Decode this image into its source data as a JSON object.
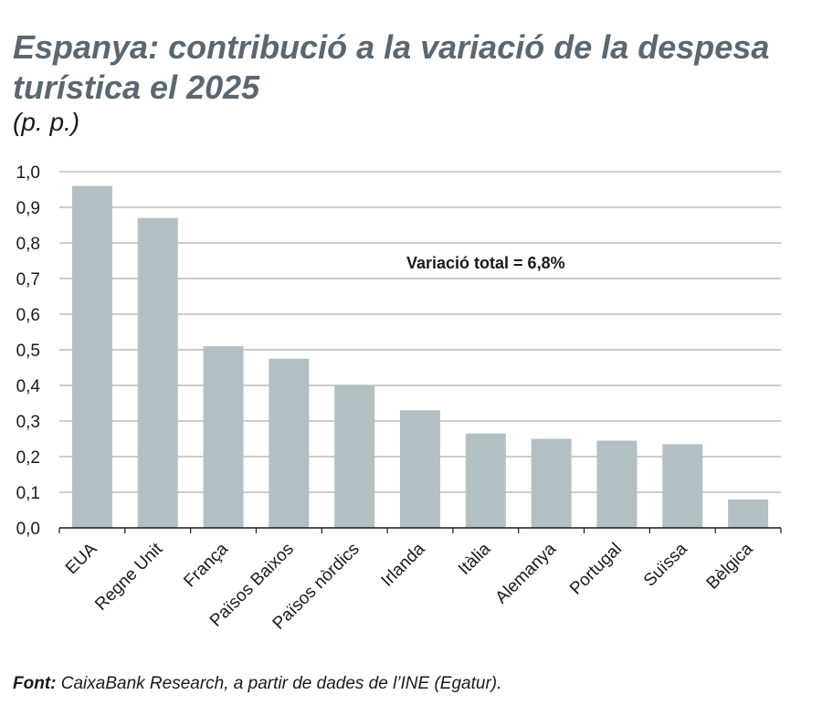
{
  "header": {
    "title": "Espanya: contribució a la variació de la despesa turística el 2025",
    "subtitle": "(p. p.)"
  },
  "footer": {
    "source_label": "Font:",
    "source_text": "CaixaBank Research, a partir de dades de l’INE (Egatur)."
  },
  "colors": {
    "bar": "#b3c0c3",
    "grid": "#9a9a9a",
    "axis": "#1a1a1a",
    "title": "#5b6770"
  },
  "chart_data": {
    "type": "bar",
    "categories": [
      "EUA",
      "Regne Unit",
      "França",
      "Països Baixos",
      "Països nòrdics",
      "Irlanda",
      "Itàlia",
      "Alemanya",
      "Portugal",
      "Suïssa",
      "Bèlgica"
    ],
    "values": [
      0.96,
      0.87,
      0.51,
      0.475,
      0.4,
      0.33,
      0.265,
      0.25,
      0.245,
      0.235,
      0.08
    ],
    "ylim": [
      0,
      1.0
    ],
    "yticks": [
      "0,0",
      "0,1",
      "0,2",
      "0,3",
      "0,4",
      "0,5",
      "0,6",
      "0,7",
      "0,8",
      "0,9",
      "1,0"
    ],
    "grid": true,
    "annotation": "Variació total = 6,8%"
  }
}
